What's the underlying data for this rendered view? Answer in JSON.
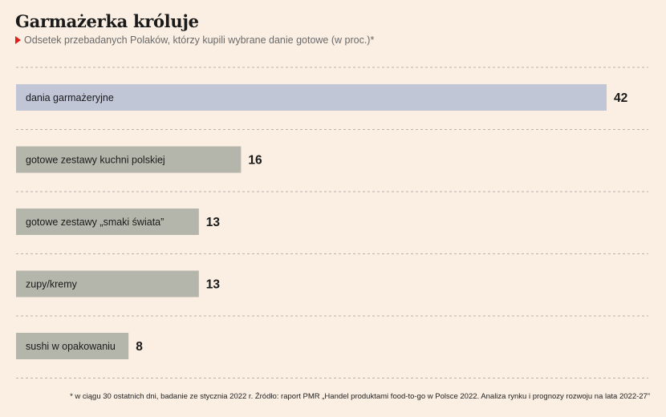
{
  "header": {
    "title": "Garmażerka króluje",
    "subtitle": "Odsetek przebadanych Polaków, którzy kupili wybrane danie gotowe (w proc.)*"
  },
  "footnote": "* w ciągu 30 ostatnich dni, badanie ze stycznia 2022 r. Źródło: raport PMR „Handel produktami food-to-go w Polsce 2022. Analiza rynku i prognozy rozwoju na lata 2022-27”",
  "colors": {
    "highlight": "#c1c6d7",
    "bar": "#b5b6ab",
    "accent": "#e01e1e",
    "background": "#fbeee2"
  },
  "chart_data": {
    "type": "bar",
    "orientation": "horizontal",
    "title": "Garmażerka króluje",
    "subtitle": "Odsetek przebadanych Polaków, którzy kupili wybrane danie gotowe (w proc.)*",
    "categories": [
      "dania garmażeryjne",
      "gotowe zestawy kuchni polskiej",
      "gotowe zestawy „smaki świata”",
      "zupy/kremy",
      "sushi w opakowaniu"
    ],
    "values": [
      42,
      16,
      13,
      13,
      8
    ],
    "highlight_index": 0,
    "xlim": [
      0,
      42
    ],
    "grid": false,
    "legend": "none"
  }
}
